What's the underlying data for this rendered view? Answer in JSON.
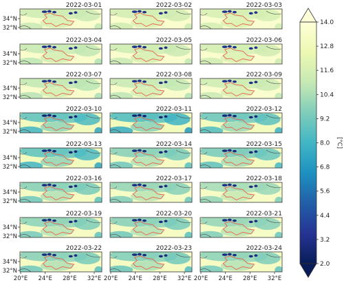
{
  "chart_data": {
    "type": "heatmap",
    "grid": {
      "rows": 8,
      "cols": 3
    },
    "panels": [
      {
        "date": "2022-03-01",
        "intensity": 0.15
      },
      {
        "date": "2022-03-02",
        "intensity": 0.12
      },
      {
        "date": "2022-03-03",
        "intensity": 0.1
      },
      {
        "date": "2022-03-04",
        "intensity": 0.18
      },
      {
        "date": "2022-03-05",
        "intensity": 0.15
      },
      {
        "date": "2022-03-06",
        "intensity": 0.12
      },
      {
        "date": "2022-03-07",
        "intensity": 0.2
      },
      {
        "date": "2022-03-08",
        "intensity": 0.18
      },
      {
        "date": "2022-03-09",
        "intensity": 0.15
      },
      {
        "date": "2022-03-10",
        "intensity": 0.55
      },
      {
        "date": "2022-03-11",
        "intensity": 0.6
      },
      {
        "date": "2022-03-12",
        "intensity": 0.5
      },
      {
        "date": "2022-03-13",
        "intensity": 0.55
      },
      {
        "date": "2022-03-14",
        "intensity": 0.4
      },
      {
        "date": "2022-03-15",
        "intensity": 0.45
      },
      {
        "date": "2022-03-16",
        "intensity": 0.4
      },
      {
        "date": "2022-03-17",
        "intensity": 0.35
      },
      {
        "date": "2022-03-18",
        "intensity": 0.3
      },
      {
        "date": "2022-03-19",
        "intensity": 0.38
      },
      {
        "date": "2022-03-20",
        "intensity": 0.4
      },
      {
        "date": "2022-03-21",
        "intensity": 0.35
      },
      {
        "date": "2022-03-22",
        "intensity": 0.4
      },
      {
        "date": "2022-03-23",
        "intensity": 0.42
      },
      {
        "date": "2022-03-24",
        "intensity": 0.38
      }
    ],
    "y_tick_labels": [
      "34°N",
      "32°N"
    ],
    "x_tick_labels": [
      "20°E",
      "24°E",
      "28°E",
      "32°E"
    ],
    "colorbar": {
      "label": "[°C]",
      "min": 2.0,
      "max": 14.0,
      "ticks": [
        "14.0",
        "12.8",
        "11.6",
        "10.4",
        "9.2",
        "8.0",
        "6.8",
        "5.6",
        "4.4",
        "3.2",
        "2.0"
      ],
      "extend": "both",
      "colors": [
        "#081d58",
        "#253494",
        "#225ea8",
        "#1d91c0",
        "#41b6c4",
        "#7fcdbb",
        "#c7e9b4",
        "#edf8b1",
        "#ffffd9"
      ]
    },
    "region_outline_color": "#e8604c",
    "coastline_color": "#444444"
  }
}
